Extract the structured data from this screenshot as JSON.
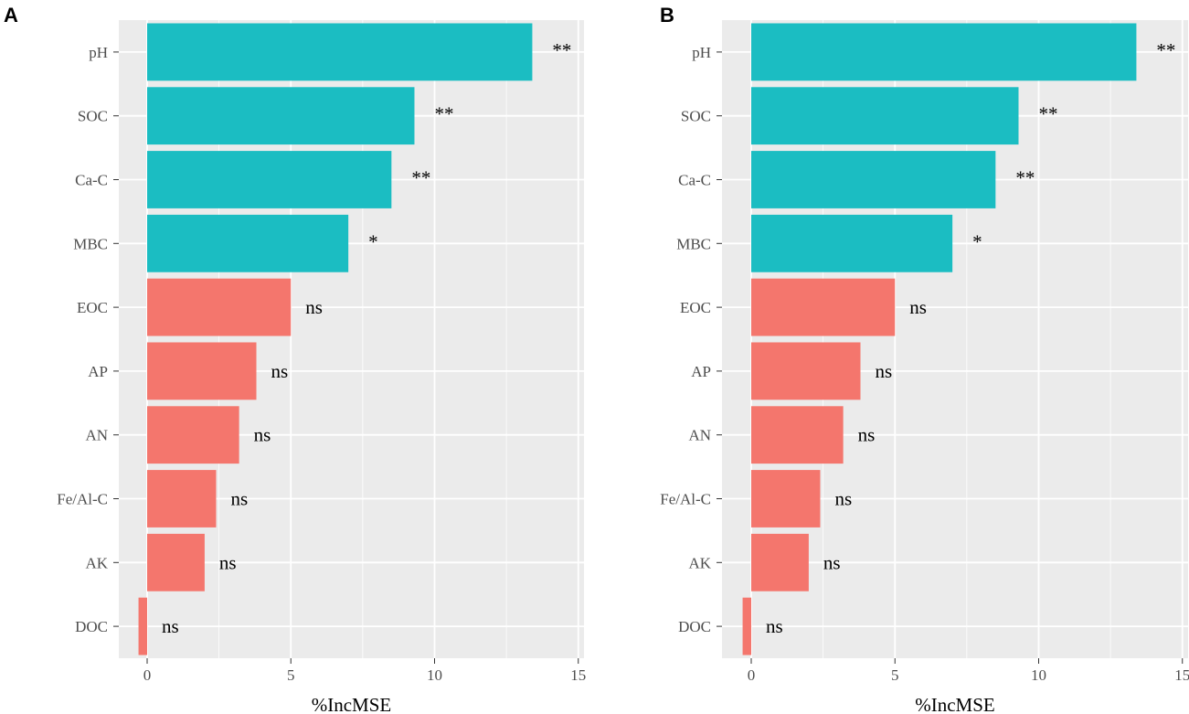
{
  "chart_data": [
    {
      "panel": "A",
      "type": "bar",
      "orientation": "horizontal",
      "xlabel": "%IncMSE",
      "ylabel": "",
      "xlim": [
        -1,
        15.2
      ],
      "xticks": [
        0,
        5,
        10,
        15
      ],
      "grid": true,
      "categories": [
        "pH",
        "SOC",
        "Ca-C",
        "MBC",
        "EOC",
        "AP",
        "AN",
        "Fe/Al-C",
        "AK",
        "DOC"
      ],
      "values": [
        13.4,
        9.3,
        8.5,
        7.0,
        5.0,
        3.8,
        3.2,
        2.4,
        2.0,
        -0.3
      ],
      "significance": [
        "**",
        "**",
        "**",
        "*",
        "ns",
        "ns",
        "ns",
        "ns",
        "ns",
        "ns"
      ],
      "colors": [
        "#1bbdc2",
        "#1bbdc2",
        "#1bbdc2",
        "#1bbdc2",
        "#f4766d",
        "#f4766d",
        "#f4766d",
        "#f4766d",
        "#f4766d",
        "#f4766d"
      ]
    },
    {
      "panel": "B",
      "type": "bar",
      "orientation": "horizontal",
      "xlabel": "%IncMSE",
      "ylabel": "",
      "xlim": [
        -1,
        15.2
      ],
      "xticks": [
        0,
        5,
        10,
        15
      ],
      "grid": true,
      "categories": [
        "pH",
        "SOC",
        "Ca-C",
        "MBC",
        "EOC",
        "AP",
        "AN",
        "Fe/Al-C",
        "AK",
        "DOC"
      ],
      "values": [
        13.4,
        9.3,
        8.5,
        7.0,
        5.0,
        3.8,
        3.2,
        2.4,
        2.0,
        -0.3
      ],
      "significance": [
        "**",
        "**",
        "**",
        "*",
        "ns",
        "ns",
        "ns",
        "ns",
        "ns",
        "ns"
      ],
      "colors": [
        "#1bbdc2",
        "#1bbdc2",
        "#1bbdc2",
        "#1bbdc2",
        "#f4766d",
        "#f4766d",
        "#f4766d",
        "#f4766d",
        "#f4766d",
        "#f4766d"
      ]
    }
  ],
  "colors": {
    "significant": "#1bbdc2",
    "not_significant": "#f4766d",
    "panel_background": "#ebebeb",
    "grid_line": "#ffffff"
  }
}
